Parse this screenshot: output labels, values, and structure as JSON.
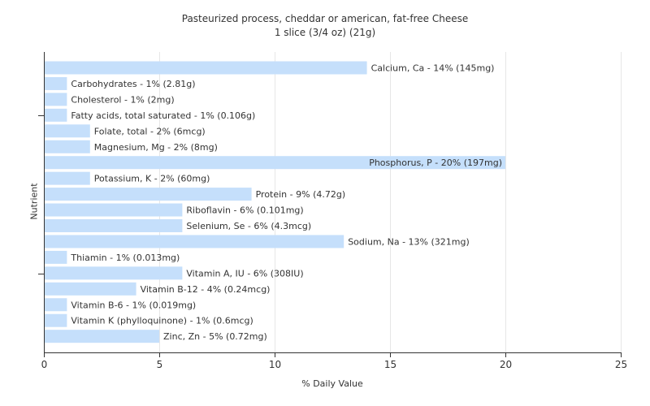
{
  "chart_data": {
    "type": "bar",
    "orientation": "horizontal",
    "title": "Pasteurized process, cheddar or american, fat-free Cheese",
    "subtitle": "1 slice (3/4 oz) (21g)",
    "xlabel": "% Daily Value",
    "ylabel": "Nutrient",
    "xlim": [
      0,
      25
    ],
    "xticks": [
      0,
      5,
      10,
      15,
      20,
      25
    ],
    "grid": true,
    "bar_color": "#c5dffb",
    "categories": [
      "Calcium, Ca",
      "Carbohydrates",
      "Cholesterol",
      "Fatty acids, total saturated",
      "Folate, total",
      "Magnesium, Mg",
      "Phosphorus, P",
      "Potassium, K",
      "Protein",
      "Riboflavin",
      "Selenium, Se",
      "Sodium, Na",
      "Thiamin",
      "Vitamin A, IU",
      "Vitamin B-12",
      "Vitamin B-6",
      "Vitamin K (phylloquinone)",
      "Zinc, Zn"
    ],
    "values": [
      14,
      1,
      1,
      1,
      2,
      2,
      20,
      2,
      9,
      6,
      6,
      13,
      1,
      6,
      4,
      1,
      1,
      5
    ],
    "labels": [
      "Calcium, Ca - 14% (145mg)",
      "Carbohydrates - 1% (2.81g)",
      "Cholesterol - 1% (2mg)",
      "Fatty acids, total saturated - 1% (0.106g)",
      "Folate, total - 2% (6mcg)",
      "Magnesium, Mg - 2% (8mg)",
      "Phosphorus, P - 20% (197mg)",
      "Potassium, K - 2% (60mg)",
      "Protein - 9% (4.72g)",
      "Riboflavin - 6% (0.101mg)",
      "Selenium, Se - 6% (4.3mcg)",
      "Sodium, Na - 13% (321mg)",
      "Thiamin - 1% (0.013mg)",
      "Vitamin A, IU - 6% (308IU)",
      "Vitamin B-12 - 4% (0.24mcg)",
      "Vitamin B-6 - 1% (0.019mg)",
      "Vitamin K (phylloquinone) - 1% (0.6mcg)",
      "Zinc, Zn - 5% (0.72mg)"
    ]
  }
}
